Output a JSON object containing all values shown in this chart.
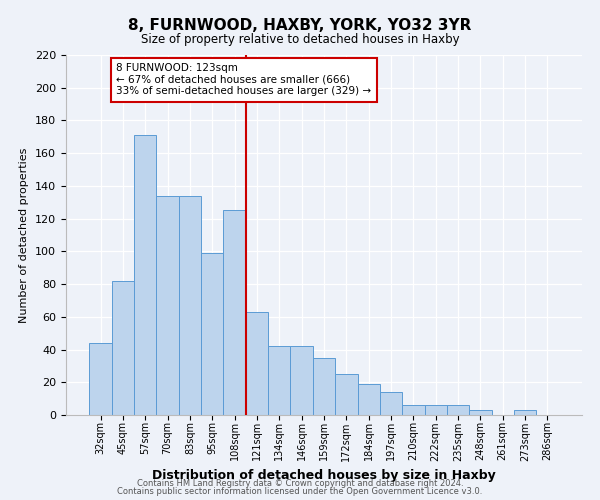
{
  "title": "8, FURNWOOD, HAXBY, YORK, YO32 3YR",
  "subtitle": "Size of property relative to detached houses in Haxby",
  "xlabel": "Distribution of detached houses by size in Haxby",
  "ylabel": "Number of detached properties",
  "bar_labels": [
    "32sqm",
    "45sqm",
    "57sqm",
    "70sqm",
    "83sqm",
    "95sqm",
    "108sqm",
    "121sqm",
    "134sqm",
    "146sqm",
    "159sqm",
    "172sqm",
    "184sqm",
    "197sqm",
    "210sqm",
    "222sqm",
    "235sqm",
    "248sqm",
    "261sqm",
    "273sqm",
    "286sqm"
  ],
  "bar_values": [
    44,
    82,
    171,
    134,
    134,
    99,
    125,
    63,
    42,
    42,
    35,
    25,
    19,
    14,
    6,
    6,
    6,
    3,
    0,
    3,
    0
  ],
  "bar_color": "#bdd4ed",
  "bar_edge_color": "#5b9bd5",
  "vline_color": "#cc0000",
  "annotation_title": "8 FURNWOOD: 123sqm",
  "annotation_line2": "← 67% of detached houses are smaller (666)",
  "annotation_line3": "33% of semi-detached houses are larger (329) →",
  "annotation_box_color": "#cc0000",
  "ylim": [
    0,
    220
  ],
  "yticks": [
    0,
    20,
    40,
    60,
    80,
    100,
    120,
    140,
    160,
    180,
    200,
    220
  ],
  "footnote1": "Contains HM Land Registry data © Crown copyright and database right 2024.",
  "footnote2": "Contains public sector information licensed under the Open Government Licence v3.0.",
  "background_color": "#eef2f9",
  "plot_bg_color": "#eef2f9"
}
